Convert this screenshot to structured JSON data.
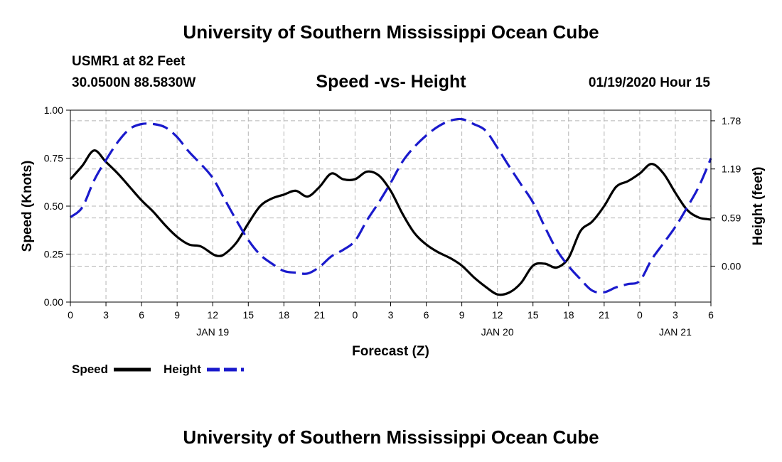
{
  "header": {
    "title": "University of Southern Mississippi Ocean Cube",
    "station": "USMR1 at 82 Feet",
    "coords": "30.0500N 88.5830W",
    "subtitle": "Speed -vs- Height",
    "datetime": "01/19/2020 Hour 15"
  },
  "footer": {
    "title": "University of Southern Mississippi Ocean Cube"
  },
  "legend": {
    "speed_label": "Speed",
    "height_label": "Height"
  },
  "colors": {
    "speed": "#000000",
    "height": "#1a1acc",
    "grid": "#b4b4b4"
  },
  "chart_data": {
    "type": "line",
    "xlabel": "Forecast (Z)",
    "x_range_hours": [
      0,
      54
    ],
    "x_ticks": [
      {
        "h": 0,
        "label": "0"
      },
      {
        "h": 3,
        "label": "3"
      },
      {
        "h": 6,
        "label": "6"
      },
      {
        "h": 9,
        "label": "9"
      },
      {
        "h": 12,
        "label": "12"
      },
      {
        "h": 15,
        "label": "15"
      },
      {
        "h": 18,
        "label": "18"
      },
      {
        "h": 21,
        "label": "21"
      },
      {
        "h": 24,
        "label": "0"
      },
      {
        "h": 27,
        "label": "3"
      },
      {
        "h": 30,
        "label": "6"
      },
      {
        "h": 33,
        "label": "9"
      },
      {
        "h": 36,
        "label": "12"
      },
      {
        "h": 39,
        "label": "15"
      },
      {
        "h": 42,
        "label": "18"
      },
      {
        "h": 45,
        "label": "21"
      },
      {
        "h": 48,
        "label": "0"
      },
      {
        "h": 51,
        "label": "3"
      },
      {
        "h": 54,
        "label": "6"
      }
    ],
    "date_labels": [
      {
        "h": 12,
        "label": "JAN 19"
      },
      {
        "h": 36,
        "label": "JAN 20"
      },
      {
        "h": 51,
        "label": "JAN 21"
      }
    ],
    "left_axis": {
      "label": "Speed (Knots)",
      "ylim": [
        0,
        1
      ],
      "ticks": [
        {
          "v": 0,
          "label": "0.00"
        },
        {
          "v": 0.25,
          "label": "0.25"
        },
        {
          "v": 0.5,
          "label": "0.50"
        },
        {
          "v": 0.75,
          "label": "0.75"
        },
        {
          "v": 1,
          "label": "1.00"
        }
      ]
    },
    "right_axis": {
      "label": "Height (feet)",
      "ylim": [
        -0.44,
        1.91
      ],
      "ticks": [
        {
          "v": 0,
          "label": "0.00"
        },
        {
          "v": 0.59,
          "label": "0.59"
        },
        {
          "v": 1.19,
          "label": "1.19"
        },
        {
          "v": 1.78,
          "label": "1.78"
        }
      ]
    },
    "series": [
      {
        "name": "Speed",
        "axis": "left",
        "style": "solid",
        "x": [
          0,
          1,
          2,
          3,
          4,
          5,
          6,
          7,
          8,
          9,
          10,
          11,
          12,
          12.5,
          13,
          14,
          15,
          16,
          17,
          18,
          19,
          20,
          21,
          22,
          23,
          24,
          25,
          26,
          27,
          28,
          29,
          30,
          31,
          32,
          33,
          34,
          35,
          36,
          37,
          38,
          39,
          40,
          41,
          42,
          43,
          44,
          45,
          46,
          47,
          48,
          49,
          50,
          51,
          52,
          53,
          54
        ],
        "values": [
          0.64,
          0.71,
          0.79,
          0.73,
          0.67,
          0.6,
          0.53,
          0.47,
          0.4,
          0.34,
          0.3,
          0.29,
          0.25,
          0.24,
          0.25,
          0.31,
          0.41,
          0.5,
          0.54,
          0.56,
          0.58,
          0.55,
          0.6,
          0.67,
          0.64,
          0.64,
          0.68,
          0.66,
          0.58,
          0.46,
          0.36,
          0.3,
          0.26,
          0.23,
          0.19,
          0.13,
          0.08,
          0.04,
          0.05,
          0.1,
          0.19,
          0.2,
          0.18,
          0.23,
          0.37,
          0.42,
          0.5,
          0.6,
          0.63,
          0.67,
          0.72,
          0.67,
          0.57,
          0.48,
          0.44,
          0.43
        ]
      },
      {
        "name": "Height",
        "axis": "right",
        "style": "dashed",
        "x": [
          0,
          1,
          2,
          3,
          4,
          5,
          6,
          7,
          8,
          9,
          10,
          11,
          12,
          13,
          14,
          15,
          16,
          17,
          18,
          19,
          20,
          21,
          22,
          23,
          24,
          25,
          26,
          27,
          28,
          29,
          30,
          31,
          32,
          33,
          34,
          35,
          36,
          37,
          38,
          39,
          40,
          41,
          42,
          43,
          44,
          45,
          46,
          47,
          48,
          49,
          50,
          51,
          52,
          53,
          54
        ],
        "values": [
          0.6,
          0.72,
          1.05,
          1.3,
          1.52,
          1.68,
          1.74,
          1.74,
          1.7,
          1.58,
          1.4,
          1.25,
          1.08,
          0.82,
          0.56,
          0.32,
          0.14,
          0.03,
          -0.06,
          -0.08,
          -0.09,
          -0.01,
          0.12,
          0.2,
          0.31,
          0.56,
          0.78,
          1.02,
          1.28,
          1.46,
          1.6,
          1.71,
          1.78,
          1.8,
          1.74,
          1.66,
          1.45,
          1.22,
          1.0,
          0.78,
          0.48,
          0.2,
          0.0,
          -0.16,
          -0.3,
          -0.32,
          -0.26,
          -0.22,
          -0.18,
          0.08,
          0.28,
          0.48,
          0.72,
          0.98,
          1.32
        ]
      }
    ]
  }
}
